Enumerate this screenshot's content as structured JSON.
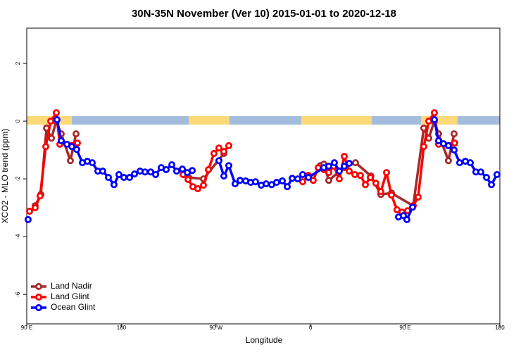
{
  "chart_data": {
    "type": "line",
    "title": "30N-35N November (Ver 10)   2015-01-01 to 2020-12-18",
    "x_label": "Longitude",
    "y_label": "XCO2 - MLO trend (ppm)",
    "xlim": [
      90,
      540
    ],
    "ylim": [
      -7.02,
      3.22
    ],
    "xticks": [
      {
        "value": 90,
        "label": "90 E"
      },
      180,
      {
        "value": 270,
        "label": "90 W"
      },
      {
        "value": 360,
        "label": "0"
      },
      {
        "value": 450,
        "label": "90 E"
      },
      {
        "value": 540,
        "label": "180"
      }
    ],
    "yticks": [
      -6,
      -4,
      -2,
      0,
      2
    ],
    "legend": "bottom-left",
    "series": [
      {
        "name": "Land Nadir",
        "color": "#a52a2a",
        "x": [
          98.0,
          103.4,
          108.8,
          113.5,
          118.1,
          122.8,
          131.5,
          136.9,
          null,
          244.0,
          258.1,
          277.5,
          null,
          369.3,
          372.6,
          377.3,
          392.0,
          402.7,
          417.4,
          426.8,
          436.9,
          457.6,
          467.7,
          472.4,
          477.7,
          481.7,
          491.1,
          496.5
        ],
        "values": [
          -2.93,
          -2.54,
          -0.24,
          -0.59,
          0,
          -0.44,
          -1.37,
          -0.44,
          null,
          -1.95,
          -2.0,
          -1.12,
          null,
          -1.54,
          -1.49,
          -2.05,
          -1.61,
          -1.44,
          -1.9,
          -2.54,
          -2.49,
          -2.93,
          -0.24,
          -0.59,
          0,
          -0.44,
          -1.37,
          -0.44
        ]
      },
      {
        "name": "Land Glint",
        "color": "#ff0000",
        "x": [
          92.7,
          98.0,
          102.7,
          108.1,
          112.8,
          118.1,
          121.5,
          138.2,
          null,
          238.7,
          243.4,
          248.0,
          252.7,
          258.1,
          262.8,
          268.1,
          272.8,
          277.5,
          282.2,
          null,
          352.5,
          357.9,
          362.5,
          367.2,
          372.6,
          377.3,
          382.0,
          387.3,
          392.0,
          396.7,
          402.1,
          407.4,
          412.1,
          416.8,
          422.1,
          426.8,
          432.2,
          436.9,
          442.2,
          446.9,
          452.3,
          457.6,
          462.3,
          467.7,
          472.4,
          477.7,
          481.7,
          497.1
        ],
        "values": [
          -3.12,
          -3.0,
          -2.59,
          -0.88,
          0,
          0.29,
          -0.8,
          -0.76,
          null,
          -1.85,
          -2.02,
          -2.27,
          -2.34,
          -2.22,
          -1.68,
          -1.12,
          -0.93,
          -1.05,
          -0.85,
          null,
          -2.1,
          -1.88,
          -2.05,
          -1.61,
          -1.68,
          -1.78,
          -1.56,
          -2.0,
          -1.22,
          -1.73,
          -1.85,
          -1.88,
          -2.2,
          -1.95,
          -2.15,
          -2.44,
          -1.78,
          -2.56,
          -3.07,
          -3.15,
          -3.1,
          -2.93,
          -2.63,
          -0.88,
          0,
          0.29,
          -0.8,
          -0.76
        ]
      },
      {
        "name": "Ocean Glint",
        "color": "#0000ff",
        "x": [
          91.3,
          null,
          118.8,
          122.8,
          128.2,
          132.9,
          137.5,
          142.9,
          147.6,
          152.3,
          157.6,
          162.3,
          167.7,
          173.0,
          177.7,
          182.4,
          187.8,
          192.5,
          197.8,
          202.5,
          207.9,
          212.6,
          217.9,
          222.6,
          228.0,
          232.6,
          238.0,
          242.7,
          247.4,
          null,
          272.8,
          277.5,
          282.2,
          288.2,
          292.9,
          298.3,
          303.0,
          307.6,
          313.0,
          317.7,
          323.0,
          327.7,
          333.1,
          337.8,
          342.5,
          347.8,
          352.5,
          357.9,
          372.6,
          377.3,
          382.6,
          387.3,
          392.0,
          396.7,
          null,
          443.6,
          448.3,
          451.6,
          457.0,
          null,
          477.7,
          481.7,
          486.4,
          491.1,
          496.5,
          501.8,
          507.2,
          511.9,
          517.2,
          521.9,
          527.3,
          532.0,
          537.3
        ],
        "values": [
          -3.41,
          null,
          0.05,
          -0.68,
          -0.8,
          -0.88,
          -0.98,
          -1.44,
          -1.39,
          -1.44,
          -1.73,
          -1.73,
          -1.95,
          -2.2,
          -1.85,
          -1.95,
          -1.95,
          -1.83,
          -1.73,
          -1.76,
          -1.76,
          -1.85,
          -1.61,
          -1.68,
          -1.51,
          -1.73,
          -1.66,
          -1.78,
          -1.71,
          null,
          -1.37,
          -1.9,
          -1.54,
          -2.17,
          -2.05,
          -2.07,
          -2.12,
          -2.1,
          -2.22,
          -2.17,
          -2.2,
          -2.12,
          -2.07,
          -2.27,
          -1.98,
          -2.0,
          -1.85,
          -1.95,
          -1.61,
          -1.56,
          -1.44,
          -1.73,
          -1.56,
          -1.46,
          null,
          -3.32,
          -3.27,
          -3.41,
          -2.98,
          null,
          0.05,
          -0.68,
          -0.78,
          -0.85,
          -1.0,
          -1.44,
          -1.39,
          -1.44,
          -1.76,
          -1.76,
          -1.95,
          -2.2,
          -1.85
        ]
      }
    ]
  }
}
